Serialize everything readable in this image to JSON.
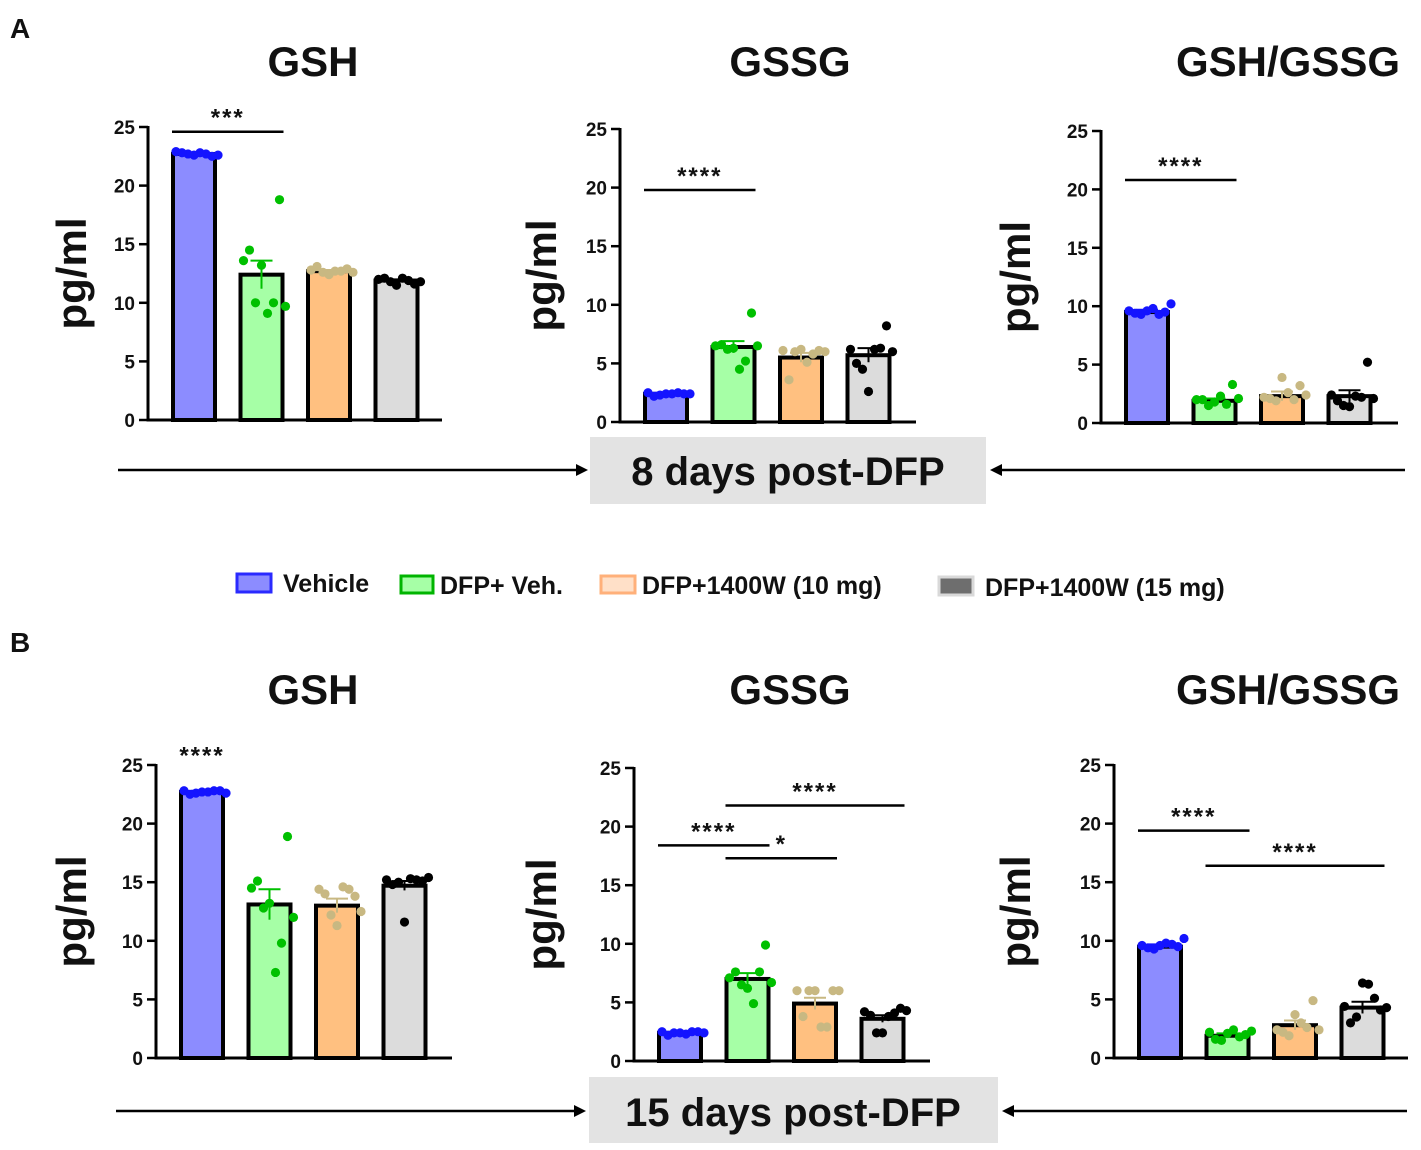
{
  "panel_labels": [
    "A",
    "B"
  ],
  "banners": [
    "8 days post-DFP",
    "15 days post-DFP"
  ],
  "legend": [
    {
      "label": "Vehicle",
      "fill": "#8c8cff",
      "stroke": "#2a2aff"
    },
    {
      "label": "DFP+ Veh.",
      "fill": "#a6ffa6",
      "stroke": "#00b400"
    },
    {
      "label": "DFP+1400W (10 mg)",
      "fill": "#ffe0c8",
      "stroke": "#ffb07a"
    },
    {
      "label": "DFP+1400W (15 mg)",
      "fill": "#6e6e6e",
      "stroke": "#d9d9d9"
    }
  ],
  "colors": {
    "bar_fills": [
      "#8c8cff",
      "#a6ffa6",
      "#ffc080",
      "#dcdcdc"
    ],
    "point_colors": [
      "#1414ff",
      "#00c000",
      "#c8b882",
      "#000000"
    ],
    "banner_bg": "#e3e3e3"
  },
  "chart_data": [
    {
      "type": "bar",
      "title": "GSH",
      "ylabel": "pg/ml",
      "ylim": [
        0,
        25
      ],
      "yticks": [
        0,
        5,
        10,
        15,
        20,
        25
      ],
      "groups": [
        "Vehicle",
        "DFP+ Veh.",
        "DFP+1400W (10 mg)",
        "DFP+1400W (15 mg)"
      ],
      "values": [
        22.7,
        12.4,
        12.7,
        11.9
      ],
      "sem": [
        0.1,
        1.2,
        0.1,
        0.1
      ],
      "points": [
        [
          22.9,
          22.7,
          22.8,
          22.5,
          22.8,
          22.6,
          22.7,
          22.6
        ],
        [
          13.6,
          10.0,
          9.1,
          18.8,
          14.5,
          13.2,
          10.0,
          9.7
        ],
        [
          12.8,
          12.6,
          12.7,
          12.9,
          13.1,
          12.4,
          12.7,
          12.6
        ],
        [
          12.0,
          11.8,
          12.1,
          11.6,
          12.1,
          11.5,
          11.9,
          11.8
        ]
      ],
      "significance": [
        {
          "from": 0,
          "to": 1,
          "y": 24.6,
          "label": "***"
        }
      ]
    },
    {
      "type": "bar",
      "title": "GSSG",
      "ylabel": "pg/ml",
      "ylim": [
        0,
        25
      ],
      "yticks": [
        0,
        5,
        10,
        15,
        20,
        25
      ],
      "groups": [
        "Vehicle",
        "DFP+ Veh.",
        "DFP+1400W (10 mg)",
        "DFP+1400W (15 mg)"
      ],
      "values": [
        2.4,
        6.4,
        5.5,
        5.7
      ],
      "sem": [
        0.1,
        0.5,
        0.4,
        0.6
      ],
      "points": [
        [
          2.5,
          2.3,
          2.4,
          2.4,
          2.2,
          2.4,
          2.5,
          2.4
        ],
        [
          6.5,
          6.2,
          4.5,
          9.3,
          6.6,
          6.3,
          5.2,
          6.5
        ],
        [
          6.1,
          6.0,
          5.1,
          6.1,
          3.6,
          6.2,
          5.8,
          6.0
        ],
        [
          6.2,
          4.5,
          6.2,
          8.2,
          5.0,
          2.6,
          6.3,
          6.0
        ]
      ],
      "significance": [
        {
          "from": 0,
          "to": 1,
          "y": 19.8,
          "label": "****"
        }
      ]
    },
    {
      "type": "bar",
      "title": "GSH/GSSG",
      "ylabel": "pg/ml",
      "ylim": [
        0,
        25
      ],
      "yticks": [
        0,
        5,
        10,
        15,
        20,
        25
      ],
      "groups": [
        "Vehicle",
        "DFP+ Veh.",
        "DFP+1400W (10 mg)",
        "DFP+1400W (15 mg)"
      ],
      "values": [
        9.5,
        1.9,
        2.3,
        2.3
      ],
      "sem": [
        0.2,
        0.2,
        0.4,
        0.5
      ],
      "points": [
        [
          9.6,
          9.3,
          9.8,
          9.5,
          9.4,
          9.6,
          9.3,
          10.2
        ],
        [
          2.0,
          1.5,
          2.3,
          3.3,
          2.0,
          1.8,
          1.6,
          2.1
        ],
        [
          2.2,
          1.9,
          2.6,
          3.2,
          2.1,
          3.9,
          2.0,
          2.4
        ],
        [
          2.4,
          1.5,
          2.3,
          5.2,
          1.9,
          1.4,
          2.2,
          2.1
        ]
      ],
      "significance": [
        {
          "from": 0,
          "to": 1,
          "y": 20.8,
          "label": "****"
        }
      ]
    },
    {
      "type": "bar",
      "title": "GSH",
      "ylabel": "pg/ml",
      "ylim": [
        0,
        25
      ],
      "yticks": [
        0,
        5,
        10,
        15,
        20,
        25
      ],
      "groups": [
        "Vehicle",
        "DFP+ Veh.",
        "DFP+1400W (10 mg)",
        "DFP+1400W (15 mg)"
      ],
      "values": [
        22.7,
        13.1,
        13.0,
        14.7
      ],
      "sem": [
        0.1,
        1.3,
        0.6,
        0.4
      ],
      "points": [
        [
          22.8,
          22.6,
          22.7,
          22.8,
          22.5,
          22.7,
          22.8,
          22.6
        ],
        [
          14.5,
          12.8,
          7.3,
          18.9,
          15.1,
          13.2,
          9.8,
          12.0
        ],
        [
          14.4,
          12.2,
          14.6,
          13.8,
          14.0,
          11.3,
          14.4,
          12.5
        ],
        [
          15.2,
          15.0,
          15.3,
          15.1,
          14.8,
          11.6,
          15.2,
          15.4
        ]
      ],
      "significance": [
        {
          "from": 0,
          "to": 0,
          "y": 26.0,
          "label": "****",
          "no_line": true
        }
      ]
    },
    {
      "type": "bar",
      "title": "GSSG",
      "ylabel": "pg/ml",
      "ylim": [
        0,
        25
      ],
      "yticks": [
        0,
        5,
        10,
        15,
        20,
        25
      ],
      "groups": [
        "Vehicle",
        "DFP+ Veh.",
        "DFP+1400W (10 mg)",
        "DFP+1400W (15 mg)"
      ],
      "values": [
        2.4,
        7.0,
        4.9,
        3.6
      ],
      "sem": [
        0.1,
        0.5,
        0.5,
        0.3
      ],
      "points": [
        [
          2.5,
          2.4,
          2.3,
          2.5,
          2.2,
          2.4,
          2.5,
          2.4
        ],
        [
          7.1,
          6.5,
          4.9,
          9.9,
          7.6,
          6.2,
          7.6,
          6.7
        ],
        [
          6.0,
          6.0,
          2.9,
          6.0,
          3.8,
          6.0,
          2.9,
          6.0
        ],
        [
          4.2,
          2.4,
          3.8,
          4.5,
          3.9,
          2.4,
          4.1,
          4.3
        ]
      ],
      "significance": [
        {
          "from": 0,
          "to": 1,
          "y": 18.4,
          "label": "****"
        },
        {
          "from": 1,
          "to": 2,
          "y": 17.3,
          "label": "*"
        },
        {
          "from": 1,
          "to": 3,
          "y": 21.8,
          "label": "****"
        }
      ]
    },
    {
      "type": "bar",
      "title": "GSH/GSSG",
      "ylabel": "pg/ml",
      "ylim": [
        0,
        25
      ],
      "yticks": [
        0,
        5,
        10,
        15,
        20,
        25
      ],
      "groups": [
        "Vehicle",
        "DFP+ Veh.",
        "DFP+1400W (10 mg)",
        "DFP+1400W (15 mg)"
      ],
      "values": [
        9.5,
        1.9,
        2.8,
        4.3
      ],
      "sem": [
        0.2,
        0.2,
        0.4,
        0.5
      ],
      "points": [
        [
          9.6,
          9.3,
          9.8,
          9.5,
          9.4,
          9.6,
          9.7,
          10.2
        ],
        [
          2.2,
          1.5,
          2.4,
          2.0,
          1.6,
          2.1,
          1.8,
          2.3
        ],
        [
          2.4,
          1.9,
          3.0,
          4.9,
          2.2,
          3.7,
          2.6,
          2.4
        ],
        [
          4.4,
          3.5,
          6.3,
          4.1,
          3.0,
          6.4,
          5.1,
          4.3
        ]
      ],
      "significance": [
        {
          "from": 0,
          "to": 1,
          "y": 19.4,
          "label": "****"
        },
        {
          "from": 1,
          "to": 3,
          "y": 16.4,
          "label": "****"
        }
      ]
    }
  ]
}
